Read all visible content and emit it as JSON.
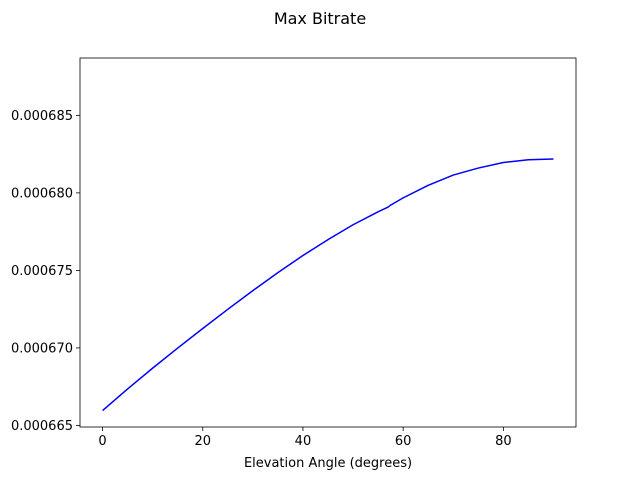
{
  "chart_data": {
    "type": "line",
    "title": "Max Bitrate",
    "xlabel": "Elevation Angle (degrees)",
    "ylabel": "",
    "xlim": [
      -4.5,
      94.5
    ],
    "ylim": [
      0.0006649,
      0.0006887
    ],
    "grid": false,
    "xticks": [
      0,
      20,
      40,
      60,
      80
    ],
    "xtick_labels": [
      "0",
      "20",
      "40",
      "60",
      "80"
    ],
    "yticks": [
      0.000665,
      0.00067,
      0.000675,
      0.00068,
      0.000685
    ],
    "ytick_labels": [
      "0.000665",
      "0.000670",
      "0.000675",
      "0.000680",
      "0.000685"
    ],
    "series": [
      {
        "color": "#0000ff",
        "x": [
          0,
          5,
          10,
          15,
          20,
          25,
          30,
          35,
          40,
          45,
          50,
          55,
          57,
          57.5,
          60,
          65,
          70,
          75,
          80,
          85,
          90
        ],
        "y": [
          0.000665959,
          0.000667355,
          0.000668698,
          0.000669989,
          0.000671252,
          0.00067249,
          0.000673697,
          0.000674858,
          0.000675961,
          0.000676987,
          0.000677945,
          0.00067878,
          0.000679087,
          0.000679213,
          0.000679678,
          0.000680491,
          0.00068115,
          0.000681602,
          0.000681962,
          0.00068214,
          0.000682187
        ]
      }
    ]
  }
}
